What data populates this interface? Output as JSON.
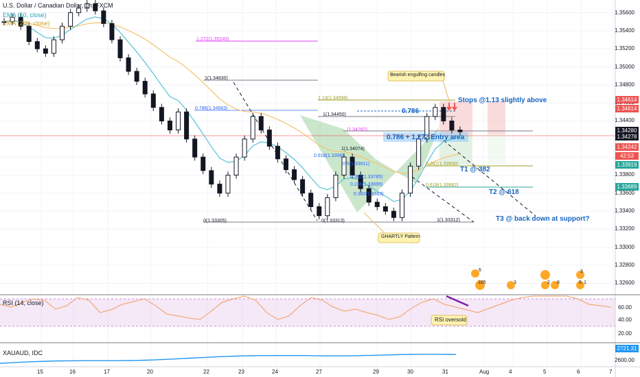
{
  "header": {
    "symbol": "U.S. Dollar / Canadian Dollar, 1h, FXCM",
    "ema50_label": "EMA (50, close)",
    "ema200_label": "EMA (200, close)"
  },
  "chart_data": {
    "type": "line",
    "price_axis": {
      "ylim": [
        1.3255,
        1.3568
      ],
      "ticks": [
        "1.35600",
        "1.35400",
        "1.35200",
        "1.35000",
        "1.34800",
        "1.34600",
        "1.34400",
        "1.34200",
        "1.34000",
        "1.33800",
        "1.33600",
        "1.33400",
        "1.33200",
        "1.33000",
        "1.32800",
        "1.32600"
      ]
    },
    "price_badges": [
      {
        "text": "1.34614",
        "color": "#ef5350"
      },
      {
        "text": "1.34614",
        "color": "#ef5350"
      },
      {
        "text": "1.34280",
        "color": "#131722"
      },
      {
        "text": "1.34278",
        "color": "#131722"
      },
      {
        "text": "1.34242",
        "color": "#ef5350"
      },
      {
        "text": "42:53",
        "color": "#ef5350"
      },
      {
        "text": "1.33919",
        "color": "#26a69a"
      },
      {
        "text": "1.33689",
        "color": "#26a69a"
      }
    ],
    "x_ticks": [
      "15",
      "16",
      "17",
      "20",
      "22",
      "23",
      "24",
      "27",
      "29",
      "30",
      "31",
      "Aug",
      "4",
      "5",
      "6",
      "7"
    ],
    "close_series": [
      1.355,
      1.3555,
      1.3545,
      1.3528,
      1.352,
      1.3515,
      1.353,
      1.3545,
      1.356,
      1.3565,
      1.357,
      1.3562,
      1.3548,
      1.353,
      1.351,
      1.3495,
      1.3484,
      1.347,
      1.3455,
      1.344,
      1.343,
      1.345,
      1.342,
      1.34,
      1.3385,
      1.337,
      1.336,
      1.338,
      1.34,
      1.342,
      1.3445,
      1.343,
      1.3412,
      1.3398,
      1.3386,
      1.3375,
      1.336,
      1.3345,
      1.3335,
      1.3355,
      1.338,
      1.34,
      1.338,
      1.3365,
      1.335,
      1.3345,
      1.334,
      1.3333,
      1.336,
      1.339,
      1.342,
      1.3445,
      1.3455,
      1.344,
      1.343,
      1.3428
    ],
    "annotations": [
      {
        "text": "1.272(1.35245)",
        "color": "#e040fb"
      },
      {
        "text": "1(1.34830)",
        "color": "#131722"
      },
      {
        "text": "0.786(1.34563)",
        "color": "#2962ff"
      },
      {
        "text": "1.13(1.34598)",
        "color": "#9e9d24"
      },
      {
        "text": "1(1.34450)",
        "color": "#131722"
      },
      {
        "text": "0.786",
        "color": "#1565c0"
      },
      {
        "text": "(1.34282)",
        "color": "#e040fb"
      },
      {
        "text": "0.786 + 1.272 Entry area",
        "color": "#1565c0"
      },
      {
        "text": "1(1.34074)",
        "color": "#131722"
      },
      {
        "text": "0.618(1.3398)",
        "color": "#2962ff"
      },
      {
        "text": "0.5(1.33911)",
        "color": "#2962ff"
      },
      {
        "text": "0.382(1.33785)",
        "color": "#2962ff"
      },
      {
        "text": "0.236(1.33695)",
        "color": "#2962ff"
      },
      {
        "text": "0.382(1.3363)",
        "color": "#2962ff"
      },
      {
        "text": "0(1.33305)",
        "color": "#131722"
      },
      {
        "text": "0(1.33313)",
        "color": "#131722"
      },
      {
        "text": "0.382(1.33930)",
        "color": "#9e9d24"
      },
      {
        "text": "0.618(1.33682)",
        "color": "#9e9d24"
      },
      {
        "text": "1(1.33312)",
        "color": "#131722"
      },
      {
        "text": "Stops @1.13 slightly above",
        "color": "#1565c0"
      },
      {
        "text": "T1 @ 382",
        "color": "#1565c0"
      },
      {
        "text": "T2 @ 618",
        "color": "#1565c0"
      },
      {
        "text": "T3 @ back down at support?",
        "color": "#1565c0"
      },
      {
        "text": "Bearish engulfing candles",
        "color": "#131722"
      },
      {
        "text": "GHARTLY Pattern",
        "color": "#131722"
      }
    ]
  },
  "rsi": {
    "label": "RSI (14, close)",
    "ticks": [
      "60.00",
      "40.00",
      "20.00"
    ],
    "callout": "RSI oversold",
    "series": [
      52,
      48,
      55,
      60,
      58,
      45,
      50,
      62,
      58,
      40,
      44,
      52,
      56,
      60,
      50,
      38,
      35,
      32,
      30,
      42,
      55,
      60,
      65,
      58,
      40,
      30,
      35,
      50,
      62,
      58,
      48,
      42,
      45,
      40,
      36,
      30,
      34,
      46,
      55,
      60,
      52,
      48,
      44,
      40,
      46,
      52,
      58,
      62,
      66,
      70,
      72,
      68,
      60,
      52,
      50,
      48
    ]
  },
  "xauaud": {
    "label": "XAUAUD, IDC",
    "ticks": [
      "2721.31",
      "2600.00"
    ],
    "badge": "2721.31"
  },
  "event_icons": {
    "n6": "6",
    "n105": "105",
    "n3a": "3",
    "n2": "2",
    "n8": "8",
    "n3b": "3",
    "n5": "5",
    "n1": "1"
  }
}
